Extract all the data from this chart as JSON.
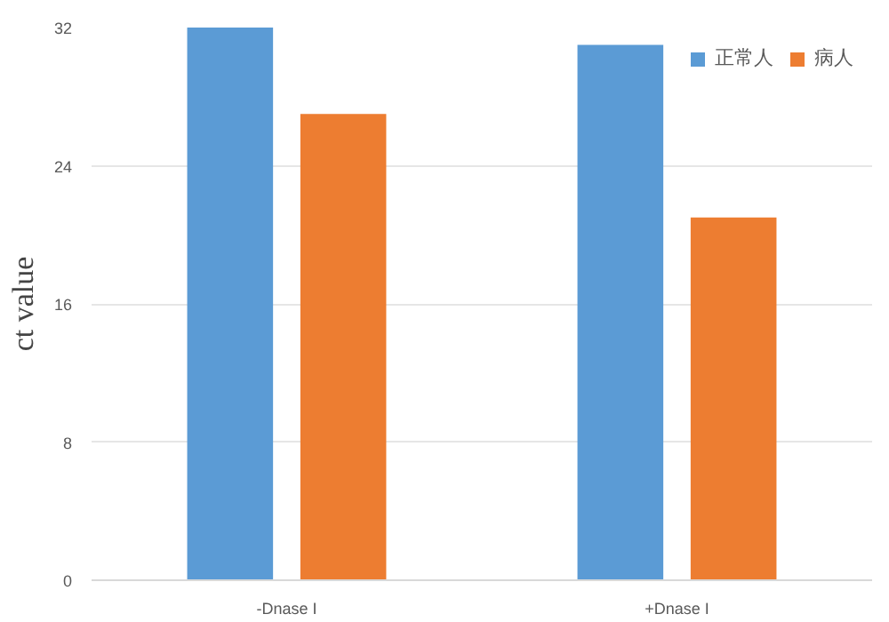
{
  "chart_data": {
    "type": "bar",
    "ylabel": "ct value",
    "categories": [
      "-Dnase I",
      "+Dnase I"
    ],
    "series": [
      {
        "name": "正常人",
        "color": "#5b9bd5",
        "values": [
          32,
          31
        ]
      },
      {
        "name": "病人",
        "color": "#ed7d31",
        "values": [
          27,
          21
        ]
      }
    ],
    "ylim": [
      0,
      32
    ],
    "yticks": [
      0,
      8,
      16,
      24,
      32
    ],
    "grid": "y",
    "legend": "top right"
  }
}
